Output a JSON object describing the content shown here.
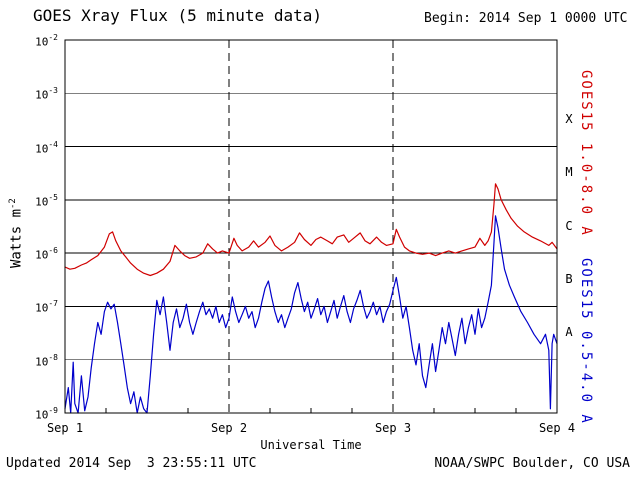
{
  "header": {
    "title": "GOES Xray Flux (5 minute data)",
    "begin_label": "Begin: 2014 Sep 1 0000 UTC"
  },
  "footer": {
    "updated": "Updated 2014 Sep  3 23:55:11 UTC",
    "source": "NOAA/SWPC Boulder, CO USA"
  },
  "colors": {
    "long_channel": "#d00000",
    "short_channel": "#0000cc",
    "axis": "#000000",
    "background": "#ffffff"
  },
  "chart_data": {
    "type": "line",
    "title": "GOES Xray Flux (5 minute data)",
    "xlabel": "Universal Time",
    "ylabel": "Watts m^-2",
    "ylabel_display": {
      "base": "Watts m",
      "exp": "-2"
    },
    "y_scale": "log",
    "ylim": [
      1e-09,
      0.01
    ],
    "x_range_days": [
      0,
      3
    ],
    "x_ticks": [
      {
        "day": 0,
        "label": "Sep 1"
      },
      {
        "day": 1,
        "label": "Sep 2"
      },
      {
        "day": 2,
        "label": "Sep 3"
      },
      {
        "day": 3,
        "label": "Sep 4"
      }
    ],
    "y_ticks": [
      {
        "base": "10",
        "exp": "-2"
      },
      {
        "base": "10",
        "exp": "-3"
      },
      {
        "base": "10",
        "exp": "-4"
      },
      {
        "base": "10",
        "exp": "-5"
      },
      {
        "base": "10",
        "exp": "-6"
      },
      {
        "base": "10",
        "exp": "-7"
      },
      {
        "base": "10",
        "exp": "-8"
      },
      {
        "base": "10",
        "exp": "-9"
      }
    ],
    "grid": {
      "h_lines_exponents": [
        -3,
        -4,
        -5,
        -6,
        -7,
        -8
      ],
      "v_dashed_days": [
        1,
        2
      ],
      "minor_tick_hours": 6
    },
    "flare_classes": [
      {
        "label": "X",
        "exponent_center": -3.5
      },
      {
        "label": "M",
        "exponent_center": -4.5
      },
      {
        "label": "C",
        "exponent_center": -5.5
      },
      {
        "label": "B",
        "exponent_center": -6.5
      },
      {
        "label": "A",
        "exponent_center": -7.5
      }
    ],
    "series": [
      {
        "id": "long",
        "name": "GOES15 1.0-8.0 A",
        "color": "#d00000",
        "points": [
          [
            0.0,
            5.5e-07
          ],
          [
            0.03,
            5e-07
          ],
          [
            0.06,
            5.2e-07
          ],
          [
            0.1,
            6e-07
          ],
          [
            0.13,
            6.5e-07
          ],
          [
            0.16,
            7.5e-07
          ],
          [
            0.2,
            9e-07
          ],
          [
            0.24,
            1.3e-06
          ],
          [
            0.27,
            2.3e-06
          ],
          [
            0.29,
            2.5e-06
          ],
          [
            0.31,
            1.7e-06
          ],
          [
            0.34,
            1.1e-06
          ],
          [
            0.37,
            8.5e-07
          ],
          [
            0.4,
            6.5e-07
          ],
          [
            0.44,
            5e-07
          ],
          [
            0.48,
            4.2e-07
          ],
          [
            0.52,
            3.8e-07
          ],
          [
            0.56,
            4.2e-07
          ],
          [
            0.6,
            5e-07
          ],
          [
            0.64,
            7e-07
          ],
          [
            0.67,
            1.4e-06
          ],
          [
            0.7,
            1.1e-06
          ],
          [
            0.73,
            9e-07
          ],
          [
            0.76,
            8e-07
          ],
          [
            0.8,
            8.5e-07
          ],
          [
            0.84,
            1e-06
          ],
          [
            0.87,
            1.5e-06
          ],
          [
            0.9,
            1.2e-06
          ],
          [
            0.93,
            1e-06
          ],
          [
            0.96,
            1.1e-06
          ],
          [
            1.0,
            1e-06
          ],
          [
            1.03,
            1.9e-06
          ],
          [
            1.05,
            1.4e-06
          ],
          [
            1.08,
            1.1e-06
          ],
          [
            1.12,
            1.3e-06
          ],
          [
            1.15,
            1.7e-06
          ],
          [
            1.18,
            1.3e-06
          ],
          [
            1.22,
            1.6e-06
          ],
          [
            1.25,
            2.1e-06
          ],
          [
            1.28,
            1.4e-06
          ],
          [
            1.32,
            1.1e-06
          ],
          [
            1.36,
            1.3e-06
          ],
          [
            1.4,
            1.6e-06
          ],
          [
            1.43,
            2.4e-06
          ],
          [
            1.46,
            1.8e-06
          ],
          [
            1.5,
            1.4e-06
          ],
          [
            1.53,
            1.8e-06
          ],
          [
            1.56,
            2e-06
          ],
          [
            1.6,
            1.7e-06
          ],
          [
            1.63,
            1.5e-06
          ],
          [
            1.66,
            2e-06
          ],
          [
            1.7,
            2.2e-06
          ],
          [
            1.73,
            1.6e-06
          ],
          [
            1.76,
            1.9e-06
          ],
          [
            1.8,
            2.4e-06
          ],
          [
            1.83,
            1.7e-06
          ],
          [
            1.86,
            1.5e-06
          ],
          [
            1.9,
            2e-06
          ],
          [
            1.93,
            1.6e-06
          ],
          [
            1.96,
            1.4e-06
          ],
          [
            2.0,
            1.5e-06
          ],
          [
            2.02,
            2.8e-06
          ],
          [
            2.04,
            2e-06
          ],
          [
            2.07,
            1.3e-06
          ],
          [
            2.1,
            1.1e-06
          ],
          [
            2.14,
            1e-06
          ],
          [
            2.18,
            9.5e-07
          ],
          [
            2.22,
            1e-06
          ],
          [
            2.26,
            9e-07
          ],
          [
            2.3,
            1e-06
          ],
          [
            2.34,
            1.1e-06
          ],
          [
            2.38,
            1e-06
          ],
          [
            2.42,
            1.1e-06
          ],
          [
            2.46,
            1.2e-06
          ],
          [
            2.5,
            1.3e-06
          ],
          [
            2.53,
            1.9e-06
          ],
          [
            2.56,
            1.4e-06
          ],
          [
            2.58,
            1.7e-06
          ],
          [
            2.6,
            2.5e-06
          ],
          [
            2.615,
            8e-06
          ],
          [
            2.625,
            2e-05
          ],
          [
            2.64,
            1.6e-05
          ],
          [
            2.66,
            1e-05
          ],
          [
            2.69,
            6.5e-06
          ],
          [
            2.72,
            4.5e-06
          ],
          [
            2.76,
            3.2e-06
          ],
          [
            2.8,
            2.5e-06
          ],
          [
            2.85,
            2e-06
          ],
          [
            2.9,
            1.7e-06
          ],
          [
            2.95,
            1.4e-06
          ],
          [
            2.97,
            1.6e-06
          ],
          [
            3.0,
            1.2e-06
          ]
        ]
      },
      {
        "id": "short",
        "name": "GOES15 0.5-4.0 A",
        "color": "#0000cc",
        "points": [
          [
            0.0,
            1.2e-09
          ],
          [
            0.02,
            3e-09
          ],
          [
            0.035,
            1e-09
          ],
          [
            0.05,
            9e-09
          ],
          [
            0.06,
            1.5e-09
          ],
          [
            0.08,
            1e-09
          ],
          [
            0.1,
            5e-09
          ],
          [
            0.12,
            1.1e-09
          ],
          [
            0.14,
            2e-09
          ],
          [
            0.16,
            7e-09
          ],
          [
            0.18,
            2e-08
          ],
          [
            0.2,
            5e-08
          ],
          [
            0.22,
            3e-08
          ],
          [
            0.24,
            8e-08
          ],
          [
            0.26,
            1.2e-07
          ],
          [
            0.28,
            9e-08
          ],
          [
            0.3,
            1.1e-07
          ],
          [
            0.32,
            5e-08
          ],
          [
            0.34,
            2e-08
          ],
          [
            0.36,
            8e-09
          ],
          [
            0.38,
            3e-09
          ],
          [
            0.4,
            1.5e-09
          ],
          [
            0.42,
            2.5e-09
          ],
          [
            0.44,
            1e-09
          ],
          [
            0.46,
            2e-09
          ],
          [
            0.48,
            1.2e-09
          ],
          [
            0.5,
            1e-09
          ],
          [
            0.52,
            5e-09
          ],
          [
            0.54,
            3e-08
          ],
          [
            0.56,
            1.3e-07
          ],
          [
            0.58,
            7e-08
          ],
          [
            0.6,
            1.5e-07
          ],
          [
            0.62,
            5e-08
          ],
          [
            0.64,
            1.5e-08
          ],
          [
            0.66,
            5e-08
          ],
          [
            0.68,
            9e-08
          ],
          [
            0.7,
            4e-08
          ],
          [
            0.72,
            6e-08
          ],
          [
            0.74,
            1.1e-07
          ],
          [
            0.76,
            5e-08
          ],
          [
            0.78,
            3e-08
          ],
          [
            0.8,
            5e-08
          ],
          [
            0.82,
            8e-08
          ],
          [
            0.84,
            1.2e-07
          ],
          [
            0.86,
            7e-08
          ],
          [
            0.88,
            9e-08
          ],
          [
            0.9,
            6e-08
          ],
          [
            0.92,
            1e-07
          ],
          [
            0.94,
            5e-08
          ],
          [
            0.96,
            7e-08
          ],
          [
            0.98,
            4e-08
          ],
          [
            1.0,
            6e-08
          ],
          [
            1.02,
            1.5e-07
          ],
          [
            1.04,
            8e-08
          ],
          [
            1.06,
            5e-08
          ],
          [
            1.08,
            7e-08
          ],
          [
            1.1,
            1e-07
          ],
          [
            1.12,
            6e-08
          ],
          [
            1.14,
            8e-08
          ],
          [
            1.16,
            4e-08
          ],
          [
            1.18,
            6e-08
          ],
          [
            1.2,
            1.2e-07
          ],
          [
            1.22,
            2.2e-07
          ],
          [
            1.24,
            3e-07
          ],
          [
            1.26,
            1.5e-07
          ],
          [
            1.28,
            8e-08
          ],
          [
            1.3,
            5e-08
          ],
          [
            1.32,
            7e-08
          ],
          [
            1.34,
            4e-08
          ],
          [
            1.36,
            6e-08
          ],
          [
            1.38,
            9e-08
          ],
          [
            1.4,
            1.8e-07
          ],
          [
            1.42,
            2.8e-07
          ],
          [
            1.44,
            1.4e-07
          ],
          [
            1.46,
            8e-08
          ],
          [
            1.48,
            1.2e-07
          ],
          [
            1.5,
            6e-08
          ],
          [
            1.52,
            9e-08
          ],
          [
            1.54,
            1.4e-07
          ],
          [
            1.56,
            7e-08
          ],
          [
            1.58,
            1e-07
          ],
          [
            1.6,
            5e-08
          ],
          [
            1.62,
            8e-08
          ],
          [
            1.64,
            1.3e-07
          ],
          [
            1.66,
            6e-08
          ],
          [
            1.68,
            1e-07
          ],
          [
            1.7,
            1.6e-07
          ],
          [
            1.72,
            8e-08
          ],
          [
            1.74,
            5e-08
          ],
          [
            1.76,
            9e-08
          ],
          [
            1.78,
            1.3e-07
          ],
          [
            1.8,
            2e-07
          ],
          [
            1.82,
            1e-07
          ],
          [
            1.84,
            6e-08
          ],
          [
            1.86,
            8e-08
          ],
          [
            1.88,
            1.2e-07
          ],
          [
            1.9,
            7e-08
          ],
          [
            1.92,
            1e-07
          ],
          [
            1.94,
            5e-08
          ],
          [
            1.96,
            8e-08
          ],
          [
            1.98,
            1.1e-07
          ],
          [
            2.0,
            2e-07
          ],
          [
            2.02,
            3.5e-07
          ],
          [
            2.04,
            1.5e-07
          ],
          [
            2.06,
            6e-08
          ],
          [
            2.08,
            1e-07
          ],
          [
            2.1,
            4e-08
          ],
          [
            2.12,
            1.5e-08
          ],
          [
            2.14,
            8e-09
          ],
          [
            2.16,
            2e-08
          ],
          [
            2.18,
            5e-09
          ],
          [
            2.2,
            3e-09
          ],
          [
            2.22,
            8e-09
          ],
          [
            2.24,
            2e-08
          ],
          [
            2.26,
            6e-09
          ],
          [
            2.28,
            1.5e-08
          ],
          [
            2.3,
            4e-08
          ],
          [
            2.32,
            2e-08
          ],
          [
            2.34,
            5e-08
          ],
          [
            2.36,
            2.5e-08
          ],
          [
            2.38,
            1.2e-08
          ],
          [
            2.4,
            3e-08
          ],
          [
            2.42,
            6e-08
          ],
          [
            2.44,
            2e-08
          ],
          [
            2.46,
            4e-08
          ],
          [
            2.48,
            7e-08
          ],
          [
            2.5,
            3e-08
          ],
          [
            2.52,
            9e-08
          ],
          [
            2.54,
            4e-08
          ],
          [
            2.56,
            6e-08
          ],
          [
            2.58,
            1.2e-07
          ],
          [
            2.6,
            2.5e-07
          ],
          [
            2.615,
            1.5e-06
          ],
          [
            2.625,
            5e-06
          ],
          [
            2.64,
            3e-06
          ],
          [
            2.66,
            1.2e-06
          ],
          [
            2.68,
            5e-07
          ],
          [
            2.71,
            2.5e-07
          ],
          [
            2.74,
            1.5e-07
          ],
          [
            2.78,
            8e-08
          ],
          [
            2.82,
            5e-08
          ],
          [
            2.86,
            3e-08
          ],
          [
            2.9,
            2e-08
          ],
          [
            2.93,
            3e-08
          ],
          [
            2.95,
            1.5e-08
          ],
          [
            2.96,
            1.2e-09
          ],
          [
            2.97,
            2e-08
          ],
          [
            2.98,
            3e-08
          ],
          [
            3.0,
            2e-08
          ]
        ]
      }
    ]
  }
}
